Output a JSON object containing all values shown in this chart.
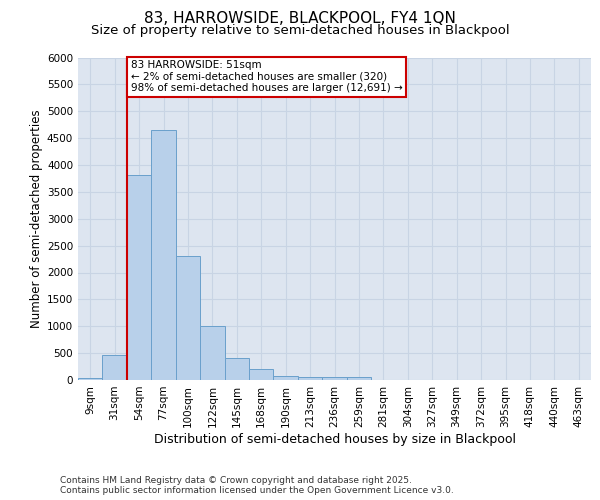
{
  "title_line1": "83, HARROWSIDE, BLACKPOOL, FY4 1QN",
  "title_line2": "Size of property relative to semi-detached houses in Blackpool",
  "xlabel": "Distribution of semi-detached houses by size in Blackpool",
  "ylabel": "Number of semi-detached properties",
  "footer_line1": "Contains HM Land Registry data © Crown copyright and database right 2025.",
  "footer_line2": "Contains public sector information licensed under the Open Government Licence v3.0.",
  "annotation_line1": "83 HARROWSIDE: 51sqm",
  "annotation_line2": "← 2% of semi-detached houses are smaller (320)",
  "annotation_line3": "98% of semi-detached houses are larger (12,691) →",
  "bar_labels": [
    "9sqm",
    "31sqm",
    "54sqm",
    "77sqm",
    "100sqm",
    "122sqm",
    "145sqm",
    "168sqm",
    "190sqm",
    "213sqm",
    "236sqm",
    "259sqm",
    "281sqm",
    "304sqm",
    "327sqm",
    "349sqm",
    "372sqm",
    "395sqm",
    "418sqm",
    "440sqm",
    "463sqm"
  ],
  "bar_values": [
    30,
    470,
    3820,
    4650,
    2300,
    1000,
    410,
    200,
    80,
    60,
    60,
    55,
    0,
    0,
    0,
    0,
    0,
    0,
    0,
    0,
    0
  ],
  "bar_color": "#b8d0ea",
  "bar_edge_color": "#6aa0cc",
  "grid_color": "#c8d4e4",
  "background_color": "#dde5f0",
  "vline_x": 1.5,
  "vline_color": "#cc0000",
  "ylim": [
    0,
    6000
  ],
  "yticks": [
    0,
    500,
    1000,
    1500,
    2000,
    2500,
    3000,
    3500,
    4000,
    4500,
    5000,
    5500,
    6000
  ],
  "annotation_box_color": "#cc0000",
  "title_fontsize": 11,
  "subtitle_fontsize": 9.5,
  "tick_fontsize": 7.5,
  "ylabel_fontsize": 8.5,
  "xlabel_fontsize": 9,
  "footer_fontsize": 6.5,
  "annotation_fontsize": 7.5
}
